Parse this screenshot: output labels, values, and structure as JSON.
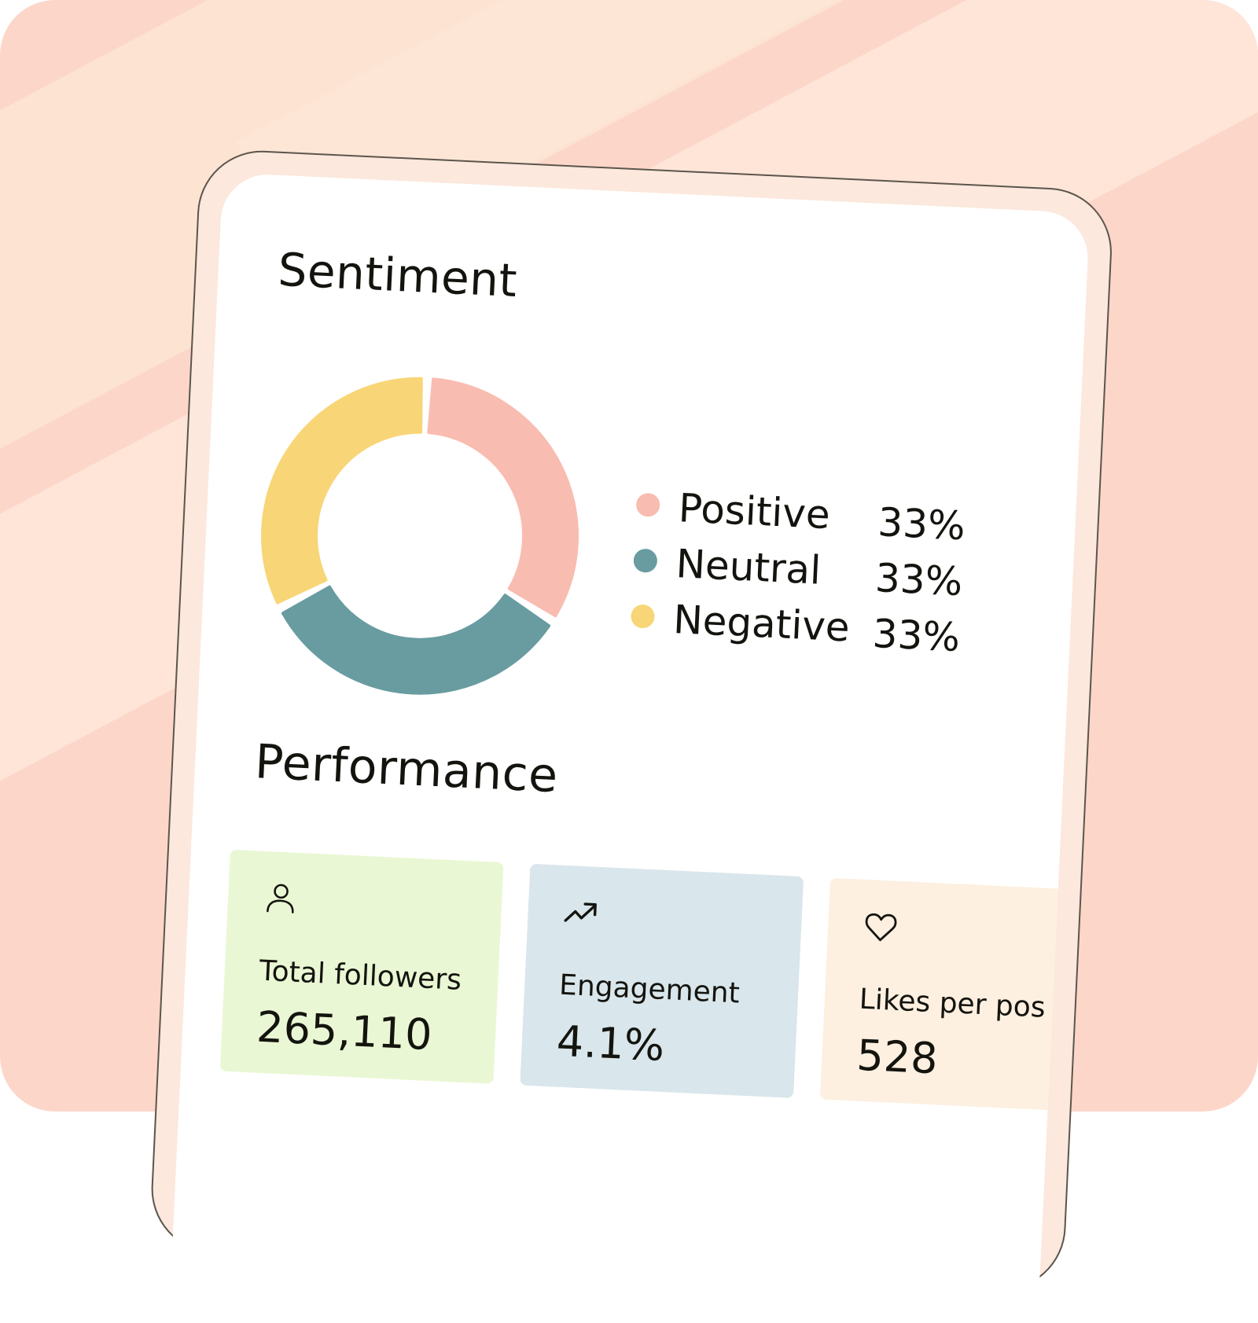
{
  "colors": {
    "positive": "#f9bcb1",
    "neutral": "#689ca0",
    "negative": "#f8d576",
    "followers_card": "#eaf7d4",
    "engagement_card": "#d9e6eb",
    "likes_card": "#fdf0e0"
  },
  "sentiment": {
    "title": "Sentiment",
    "items": [
      {
        "label": "Positive",
        "value": "33%",
        "share": 33,
        "color": "#f9bcb1"
      },
      {
        "label": "Neutral",
        "value": "33%",
        "share": 33,
        "color": "#689ca0"
      },
      {
        "label": "Negative",
        "value": "33%",
        "share": 33,
        "color": "#f8d576"
      }
    ]
  },
  "performance": {
    "title": "Performance",
    "cards": [
      {
        "icon": "person-icon",
        "label": "Total followers",
        "value": "265,110"
      },
      {
        "icon": "trending-up-icon",
        "label": "Engagement",
        "value": "4.1%"
      },
      {
        "icon": "heart-icon",
        "label": "Likes per pos",
        "value": "528"
      }
    ]
  }
}
